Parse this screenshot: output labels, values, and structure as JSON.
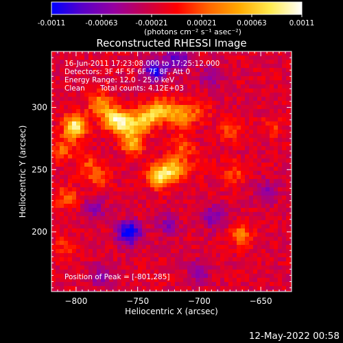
{
  "chart_data": {
    "type": "heatmap",
    "title": "Reconstructed RHESSI Image",
    "xlabel": "Heliocentric X (arcsec)",
    "ylabel": "Heliocentric Y (arcsec)",
    "xlim": [
      -820,
      -625
    ],
    "ylim": [
      152,
      345
    ],
    "x_ticks": [
      -800,
      -750,
      -700,
      -650
    ],
    "y_ticks": [
      200,
      250,
      300
    ],
    "colorbar": {
      "range": [
        -0.0011,
        0.0011
      ],
      "ticks": [
        "-0.0011",
        "-0.00063",
        "-0.00021",
        "0.00021",
        "0.00063",
        "0.0011"
      ],
      "units": "(photons cm⁻² s⁻¹ asec⁻²)",
      "colormap": [
        "#0000ff",
        "#5a00c8",
        "#9600a0",
        "#c8004b",
        "#ff0000",
        "#ff6400",
        "#ffaa00",
        "#ffeb50",
        "#ffffff"
      ]
    },
    "annotations": [
      "16-Jun-2011 17:23:08.000 to 17:25:12.000",
      "Detectors: 3F 4F 5F 6F 7F 8F, Att 0",
      "Energy Range: 12.0 - 25.0 keV",
      "Clean",
      "Total counts: 4.12E+03",
      "Position of Peak = [-801,285]"
    ],
    "sources": [
      {
        "x": -801,
        "y": 285,
        "value": 0.0011
      },
      {
        "x": -770,
        "y": 291,
        "value": 0.00085
      },
      {
        "x": -760,
        "y": 286,
        "value": 0.00085
      },
      {
        "x": -746,
        "y": 289,
        "value": 0.00078
      },
      {
        "x": -754,
        "y": 271,
        "value": 0.0007
      },
      {
        "x": -735,
        "y": 296,
        "value": 0.0007
      },
      {
        "x": -725,
        "y": 298,
        "value": 0.00045
      },
      {
        "x": -714,
        "y": 293,
        "value": 0.0006
      },
      {
        "x": -700,
        "y": 297,
        "value": 0.0003
      },
      {
        "x": -732,
        "y": 245,
        "value": 0.001
      },
      {
        "x": -720,
        "y": 250,
        "value": 0.0008
      },
      {
        "x": -714,
        "y": 268,
        "value": 0.00045
      },
      {
        "x": -781,
        "y": 303,
        "value": 0.0006
      },
      {
        "x": -810,
        "y": 266,
        "value": 0.00045
      },
      {
        "x": -790,
        "y": 253,
        "value": 0.00035
      },
      {
        "x": -808,
        "y": 228,
        "value": 0.0004
      },
      {
        "x": -782,
        "y": 243,
        "value": 0.0003
      },
      {
        "x": -675,
        "y": 283,
        "value": 0.0004
      },
      {
        "x": -671,
        "y": 247,
        "value": 0.00035
      },
      {
        "x": -640,
        "y": 284,
        "value": 0.00025
      },
      {
        "x": -666,
        "y": 197,
        "value": 0.0005
      },
      {
        "x": -810,
        "y": 188,
        "value": 0.00025
      },
      {
        "x": -700,
        "y": 255,
        "value": 0.0002
      },
      {
        "x": -757,
        "y": 199,
        "value": -0.0011
      },
      {
        "x": -736,
        "y": 330,
        "value": -0.0008
      },
      {
        "x": -718,
        "y": 339,
        "value": -0.0007
      },
      {
        "x": -690,
        "y": 325,
        "value": -0.0004
      },
      {
        "x": -785,
        "y": 218,
        "value": -0.0004
      },
      {
        "x": -725,
        "y": 205,
        "value": -0.0004
      },
      {
        "x": -688,
        "y": 212,
        "value": -0.0005
      },
      {
        "x": -646,
        "y": 232,
        "value": -0.0004
      },
      {
        "x": -780,
        "y": 165,
        "value": -0.0004
      },
      {
        "x": -700,
        "y": 168,
        "value": -0.0004
      }
    ]
  },
  "footer": {
    "timestamp": "12-May-2022 00:58"
  }
}
